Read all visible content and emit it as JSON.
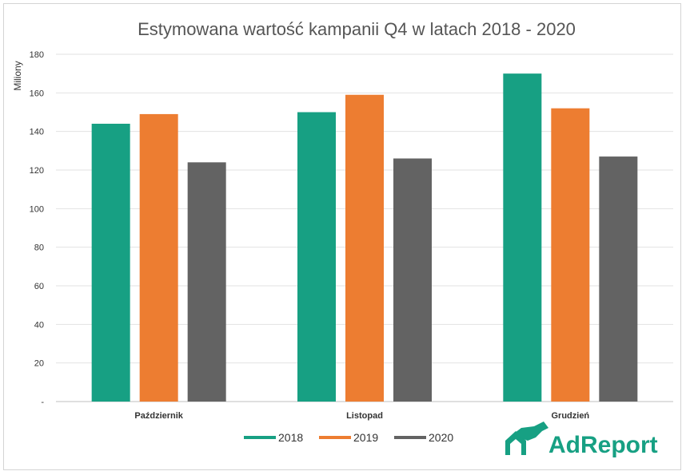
{
  "chart_data": {
    "type": "bar",
    "title": "Estymowana wartość kampanii Q4 w latach 2018 - 2020",
    "ylabel": "Miliony",
    "xlabel": "",
    "categories": [
      "Październik",
      "Listopad",
      "Grudzień"
    ],
    "series": [
      {
        "name": "2018",
        "color": "#17a083",
        "values": [
          144,
          150,
          170
        ]
      },
      {
        "name": "2019",
        "color": "#ed7d31",
        "values": [
          149,
          159,
          152
        ]
      },
      {
        "name": "2020",
        "color": "#636363",
        "values": [
          124,
          126,
          127
        ]
      }
    ],
    "ylim": [
      0,
      180
    ],
    "yticks": [
      "-",
      "20",
      "40",
      "60",
      "80",
      "100",
      "120",
      "140",
      "160",
      "180"
    ],
    "grid": true,
    "legend": "bottom"
  },
  "logo": {
    "text": "AdReport",
    "icon": "horse-icon",
    "color": "#17a083"
  }
}
